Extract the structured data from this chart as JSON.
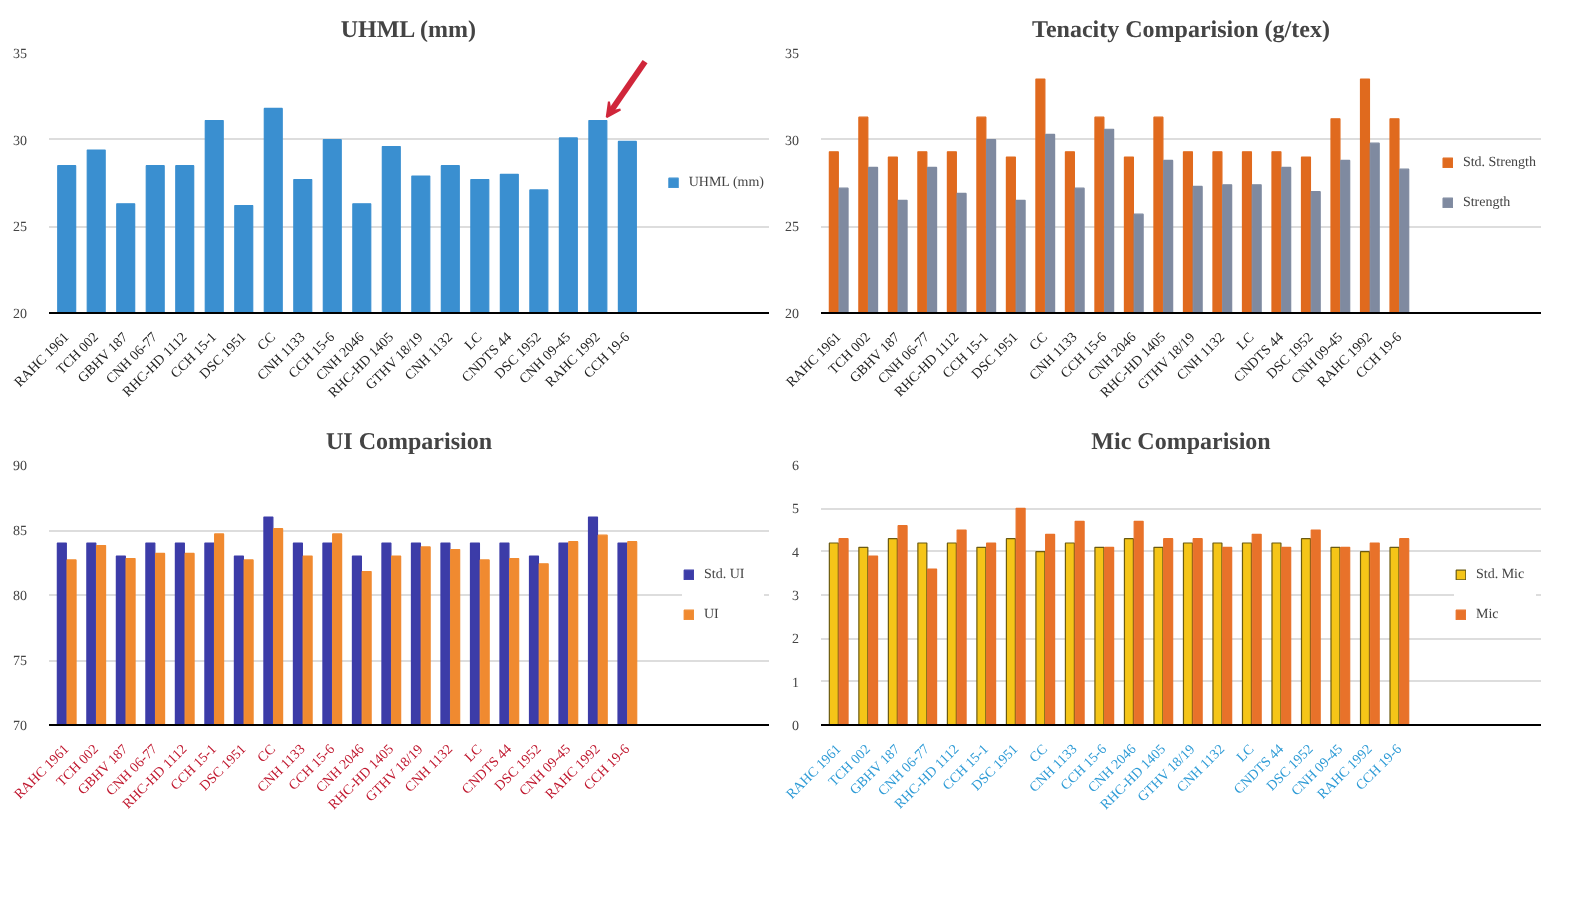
{
  "chart_data": [
    {
      "type": "bar",
      "title": "UHML (mm)",
      "categories": [
        "RAHC 1961",
        "TCH 002",
        "GBHV 187",
        "CNH 06-77",
        "RHC-HD 1112",
        "CCH 15-1",
        "DSC 1951",
        "CC",
        "CNH 1133",
        "CCH 15-6",
        "CNH 2046",
        "RHC-HD 1405",
        "GTHV 18/19",
        "CNH 1132",
        "LC",
        "CNDTS 44",
        "DSC 1952",
        "CNH 09-45",
        "RAHC 1992",
        "CCH 19-6"
      ],
      "series": [
        {
          "name": "UHML (mm)",
          "color": "#3a8fd0",
          "values": [
            28.5,
            29.4,
            26.3,
            28.5,
            28.5,
            31.1,
            26.2,
            31.8,
            27.7,
            30.0,
            26.3,
            29.6,
            27.9,
            28.5,
            27.7,
            28.0,
            27.1,
            30.1,
            31.1,
            29.9
          ]
        }
      ],
      "ylim": [
        20,
        35
      ],
      "yticks": [
        20,
        25,
        30,
        35
      ],
      "grid": "y",
      "legend": "right"
    },
    {
      "type": "bar",
      "title": "Tenacity Comparision (g/tex)",
      "categories": [
        "RAHC 1961",
        "TCH 002",
        "GBHV 187",
        "CNH 06-77",
        "RHC-HD 1112",
        "CCH 15-1",
        "DSC 1951",
        "CC",
        "CNH 1133",
        "CCH 15-6",
        "CNH 2046",
        "RHC-HD 1405",
        "GTHV 18/19",
        "CNH 1132",
        "LC",
        "CNDTS 44",
        "DSC 1952",
        "CNH 09-45",
        "RAHC 1992",
        "CCH 19-6"
      ],
      "series": [
        {
          "name": "Std. Strength",
          "color": "#e06a1e",
          "values": [
            29.3,
            31.3,
            29.0,
            29.3,
            29.3,
            31.3,
            29.0,
            33.5,
            29.3,
            31.3,
            29.0,
            31.3,
            29.3,
            29.3,
            29.3,
            29.3,
            29.0,
            31.2,
            33.5,
            31.2
          ]
        },
        {
          "name": "Strength",
          "color": "#7f8aa0",
          "values": [
            27.2,
            28.4,
            26.5,
            28.4,
            26.9,
            30.0,
            26.5,
            30.3,
            27.2,
            30.6,
            25.7,
            28.8,
            27.3,
            27.4,
            27.4,
            28.4,
            27.0,
            28.8,
            29.8,
            28.3
          ]
        }
      ],
      "ylim": [
        20,
        35
      ],
      "yticks": [
        20,
        25,
        30,
        35
      ],
      "grid": "y",
      "legend": "right"
    },
    {
      "type": "bar",
      "title": "UI Comparision",
      "categories": [
        "RAHC 1961",
        "TCH 002",
        "GBHV 187",
        "CNH 06-77",
        "RHC-HD 1112",
        "CCH 15-1",
        "DSC 1951",
        "CC",
        "CNH 1133",
        "CCH 15-6",
        "CNH 2046",
        "RHC-HD 1405",
        "GTHV 18/19",
        "CNH 1132",
        "LC",
        "CNDTS 44",
        "DSC 1952",
        "CNH 09-45",
        "RAHC 1992",
        "CCH 19-6"
      ],
      "series": [
        {
          "name": "Std. UI",
          "color": "#3c3ca8",
          "values": [
            84,
            84,
            83,
            84,
            84,
            84,
            83,
            86,
            84,
            84,
            83,
            84,
            84,
            84,
            84,
            84,
            83,
            84,
            86,
            84
          ]
        },
        {
          "name": "UI",
          "color": "#f08a30",
          "values": [
            82.7,
            83.8,
            82.8,
            83.2,
            83.2,
            84.7,
            82.7,
            85.1,
            83.0,
            84.7,
            81.8,
            83.0,
            83.7,
            83.5,
            82.7,
            82.8,
            82.4,
            84.1,
            84.6,
            84.1
          ]
        }
      ],
      "ylim": [
        70,
        90
      ],
      "yticks": [
        70,
        75,
        80,
        85,
        90
      ],
      "grid": "y",
      "legend": "right"
    },
    {
      "type": "bar",
      "title": "Mic Comparision",
      "categories": [
        "RAHC 1961",
        "TCH 002",
        "GBHV 187",
        "CNH 06-77",
        "RHC-HD 1112",
        "CCH 15-1",
        "DSC 1951",
        "CC",
        "CNH 1133",
        "CCH 15-6",
        "CNH 2046",
        "RHC-HD 1405",
        "GTHV 18/19",
        "CNH 1132",
        "LC",
        "CNDTS 44",
        "DSC 1952",
        "CNH 09-45",
        "RAHC 1992",
        "CCH 19-6"
      ],
      "series": [
        {
          "name": "Std. Mic",
          "color": "#f5c518",
          "values": [
            4.2,
            4.1,
            4.3,
            4.2,
            4.2,
            4.1,
            4.3,
            4.0,
            4.2,
            4.1,
            4.3,
            4.1,
            4.2,
            4.2,
            4.2,
            4.2,
            4.3,
            4.1,
            4.0,
            4.1
          ]
        },
        {
          "name": "Mic",
          "color": "#e8722a",
          "values": [
            4.3,
            3.9,
            4.6,
            3.6,
            4.5,
            4.2,
            5.0,
            4.4,
            4.7,
            4.1,
            4.7,
            4.3,
            4.3,
            4.1,
            4.4,
            4.1,
            4.5,
            4.1,
            4.2,
            4.3
          ]
        }
      ],
      "ylim": [
        0,
        6
      ],
      "yticks": [
        0,
        1,
        2,
        3,
        4,
        5,
        6
      ],
      "grid": "y",
      "legend": "right"
    }
  ]
}
